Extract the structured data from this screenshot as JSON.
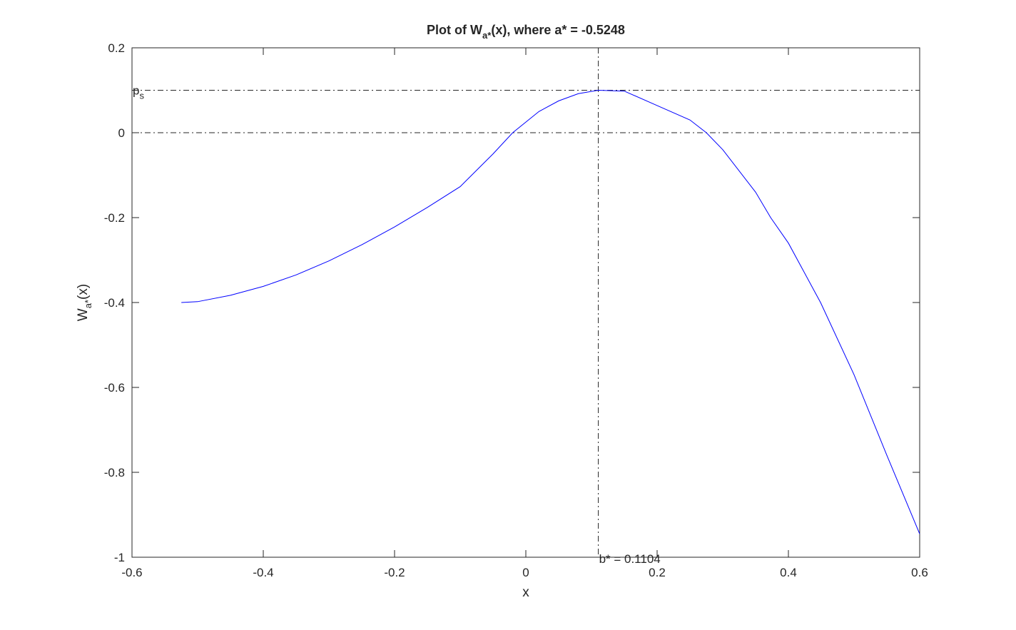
{
  "chart_data": {
    "type": "line",
    "title": {
      "prefix": "Plot of W",
      "subscript": "a*",
      "suffix": "(x), where a* = -0.5248"
    },
    "x_label": "x",
    "y_label": {
      "prefix": "W",
      "subscript": "a*",
      "suffix": "(x)"
    },
    "xlim": [
      -0.6,
      0.6
    ],
    "xticks": [
      -0.6,
      -0.4,
      -0.2,
      0,
      0.2,
      0.4,
      0.6
    ],
    "ylim": [
      -1,
      0.2
    ],
    "yticks": [
      -1,
      -0.8,
      -0.6,
      -0.4,
      -0.2,
      0,
      0.2
    ],
    "series": [
      {
        "color": "#0000ff",
        "x": [
          -0.5248,
          -0.5,
          -0.45,
          -0.4,
          -0.35,
          -0.3,
          -0.25,
          -0.2,
          -0.15,
          -0.1,
          -0.05,
          -0.02,
          0,
          0.02,
          0.05,
          0.08,
          0.1104,
          0.15,
          0.2,
          0.25,
          0.275,
          0.3,
          0.35,
          0.373,
          0.4,
          0.449,
          0.5,
          0.55,
          0.6
        ],
        "values": [
          -0.4,
          -0.398,
          -0.383,
          -0.362,
          -0.335,
          -0.302,
          -0.264,
          -0.222,
          -0.176,
          -0.127,
          -0.05,
          0.0,
          0.025,
          0.05,
          0.075,
          0.092,
          0.1,
          0.098,
          0.064,
          0.03,
          0.0,
          -0.04,
          -0.14,
          -0.2,
          -0.26,
          -0.4,
          -0.57,
          -0.76,
          -0.945
        ]
      }
    ],
    "reference_lines": {
      "horizontal": [
        0.1,
        0
      ],
      "vertical": 0.1104
    },
    "annotations": {
      "ps": {
        "base": "p",
        "subscript": "s"
      },
      "b_star": "b* = 0.1104"
    }
  }
}
